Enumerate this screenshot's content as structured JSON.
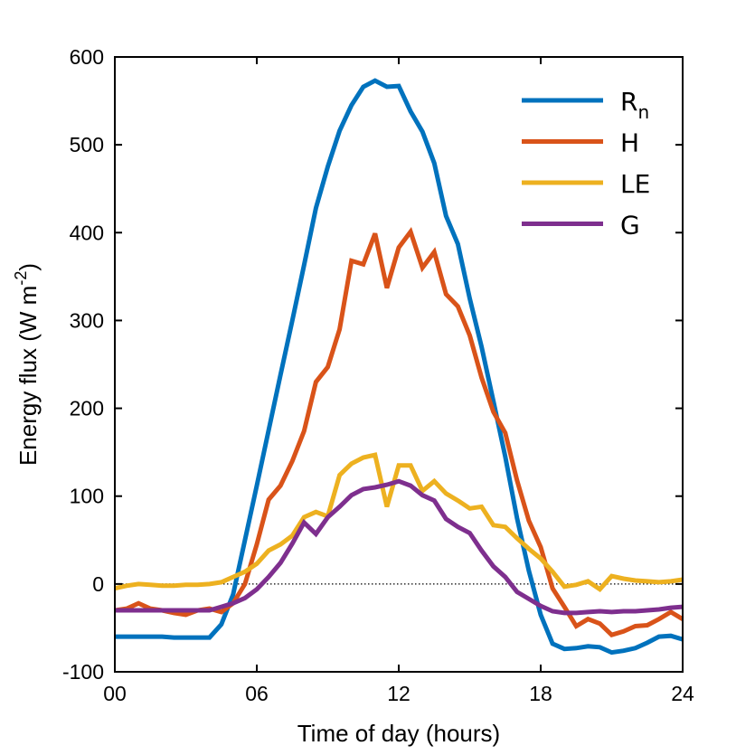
{
  "chart_data": {
    "type": "line",
    "title": "",
    "xlabel": "Time of day (hours)",
    "ylabel": "Energy flux (W m",
    "ylabel_sup": "-2",
    "ylabel_close": ")",
    "xlim": [
      0,
      24
    ],
    "ylim": [
      -100,
      600
    ],
    "xticks": [
      0,
      6,
      12,
      18,
      24
    ],
    "xtick_labels": [
      "00",
      "06",
      "12",
      "18",
      "24"
    ],
    "yticks": [
      -100,
      0,
      100,
      200,
      300,
      400,
      500,
      600
    ],
    "ytick_labels": [
      "-100",
      "0",
      "100",
      "200",
      "300",
      "400",
      "500",
      "600"
    ],
    "grid": false,
    "zero_line": "dotted",
    "legend_position": "top-right",
    "x": [
      0,
      0.5,
      1,
      1.5,
      2,
      2.5,
      3,
      3.5,
      4,
      4.5,
      5,
      5.5,
      6,
      6.5,
      7,
      7.5,
      8,
      8.5,
      9,
      9.5,
      10,
      10.5,
      11,
      11.5,
      12,
      12.5,
      13,
      13.5,
      14,
      14.5,
      15,
      15.5,
      16,
      16.5,
      17,
      17.5,
      18,
      18.5,
      19,
      19.5,
      20,
      20.5,
      21,
      21.5,
      22,
      22.5,
      23,
      23.5,
      24
    ],
    "series": [
      {
        "name": "R",
        "name_sub": "n",
        "color": "#0072BD",
        "values": [
          -60,
          -60,
          -60,
          -60,
          -60,
          -61,
          -61,
          -61,
          -61,
          -46,
          -12,
          50,
          112,
          175,
          238,
          300,
          363,
          428,
          475,
          516,
          545,
          566,
          573,
          566,
          567,
          538,
          515,
          479,
          419,
          387,
          325,
          270,
          208,
          145,
          75,
          15,
          -35,
          -68,
          -74,
          -73,
          -71,
          -72,
          -78,
          -76,
          -73,
          -67,
          -60,
          -59,
          -63
        ]
      },
      {
        "name": "H",
        "name_sub": "",
        "color": "#D95319",
        "values": [
          -30,
          -28,
          -22,
          -28,
          -30,
          -33,
          -35,
          -30,
          -28,
          -32,
          -22,
          0,
          45,
          96,
          112,
          140,
          174,
          230,
          247,
          290,
          368,
          364,
          399,
          337,
          383,
          401,
          360,
          378,
          330,
          316,
          283,
          235,
          196,
          172,
          118,
          72,
          42,
          -5,
          -26,
          -48,
          -40,
          -45,
          -58,
          -54,
          -48,
          -47,
          -40,
          -32,
          -40
        ]
      },
      {
        "name": "LE",
        "name_sub": "",
        "color": "#EDB120",
        "values": [
          -5,
          -2,
          0,
          -1,
          -2,
          -2,
          -1,
          -1,
          0,
          2,
          8,
          14,
          23,
          38,
          45,
          55,
          76,
          82,
          77,
          124,
          137,
          144,
          147,
          88,
          135,
          135,
          106,
          117,
          103,
          95,
          86,
          88,
          67,
          65,
          52,
          40,
          29,
          14,
          -3,
          -1,
          3,
          -6,
          9,
          6,
          4,
          3,
          2,
          3,
          5
        ]
      },
      {
        "name": "G",
        "name_sub": "",
        "color": "#7E2F8E",
        "values": [
          -30,
          -30,
          -30,
          -30,
          -30,
          -30,
          -30,
          -30,
          -30,
          -26,
          -22,
          -16,
          -6,
          8,
          24,
          46,
          70,
          57,
          76,
          88,
          101,
          108,
          110,
          113,
          117,
          112,
          101,
          95,
          74,
          65,
          58,
          38,
          20,
          8,
          -9,
          -17,
          -25,
          -31,
          -33,
          -33,
          -32,
          -31,
          -32,
          -31,
          -31,
          -30,
          -29,
          -27,
          -26
        ]
      }
    ]
  }
}
